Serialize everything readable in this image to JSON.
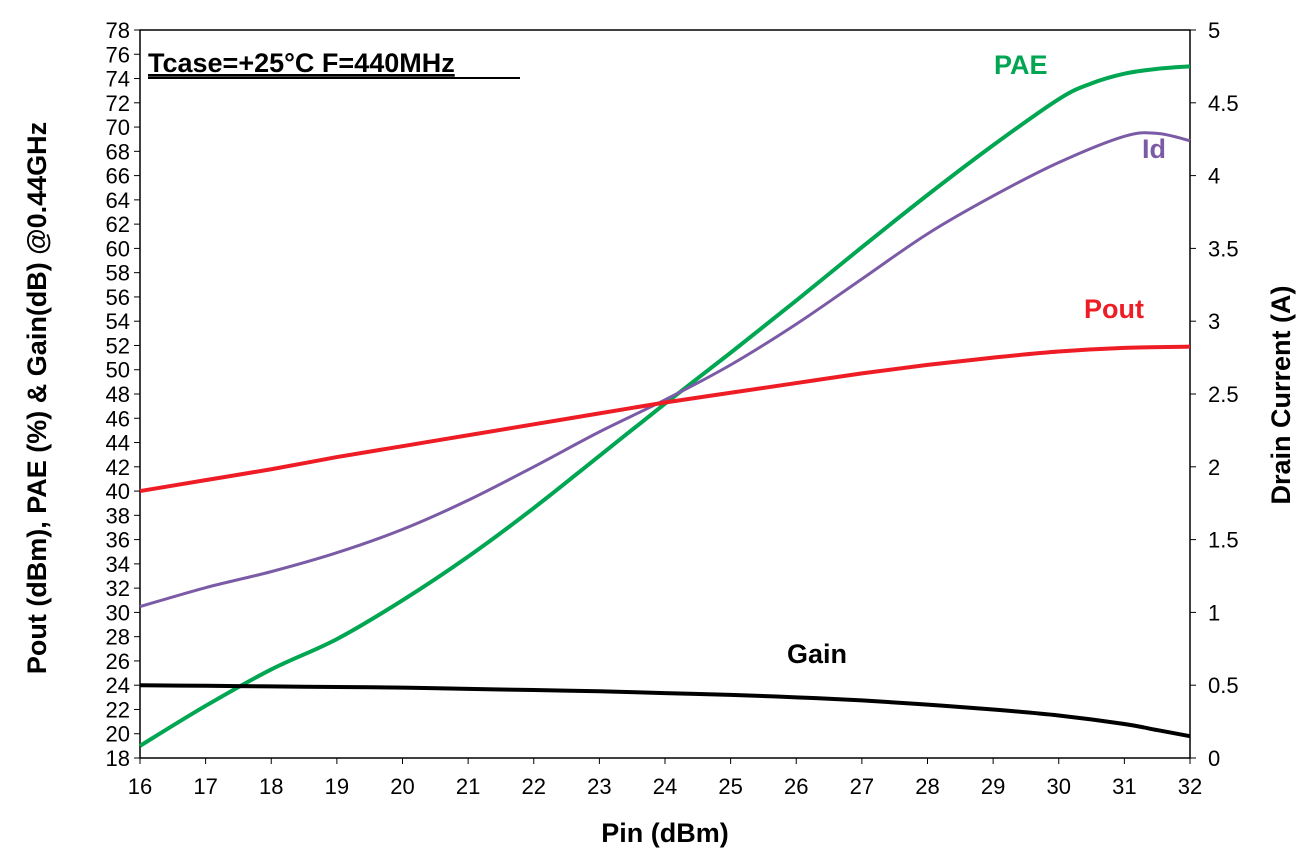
{
  "chart_data": {
    "type": "line",
    "annotation": "Tcase=+25°C  F=440MHz",
    "xlabel": "Pin (dBm)",
    "ylabel": "Pout (dBm), PAE (%) & Gain(dB) @0.44GHz",
    "y2label": "Drain Current (A)",
    "xlim": [
      16,
      32
    ],
    "ylim": [
      18,
      78
    ],
    "y2lim": [
      0,
      5
    ],
    "xticks": [
      16,
      17,
      18,
      19,
      20,
      21,
      22,
      23,
      24,
      25,
      26,
      27,
      28,
      29,
      30,
      31,
      32
    ],
    "yticks": [
      18,
      20,
      22,
      24,
      26,
      28,
      30,
      32,
      34,
      36,
      38,
      40,
      42,
      44,
      46,
      48,
      50,
      52,
      54,
      56,
      58,
      60,
      62,
      64,
      66,
      68,
      70,
      72,
      74,
      76,
      78
    ],
    "y2ticks": [
      "0",
      "0.5",
      "1",
      "1.5",
      "2",
      "2.5",
      "3",
      "3.5",
      "4",
      "4.5",
      "5"
    ],
    "series": [
      {
        "name": "PAE",
        "axis": "left",
        "color": "#00A651",
        "x": [
          16,
          17,
          18,
          19,
          20,
          21,
          22,
          23,
          24,
          25,
          26,
          27,
          28,
          29,
          30,
          30.5,
          31,
          31.5,
          32
        ],
        "values": [
          19,
          22.3,
          25.3,
          27.8,
          31.0,
          34.6,
          38.6,
          42.9,
          47.2,
          51.4,
          55.7,
          60.1,
          64.4,
          68.5,
          72.3,
          73.6,
          74.4,
          74.8,
          75.0
        ]
      },
      {
        "name": "Id",
        "axis": "right",
        "color": "#7B5BA6",
        "x": [
          16,
          17,
          18,
          19,
          20,
          21,
          22,
          23,
          24,
          25,
          26,
          27,
          28,
          29,
          30,
          31,
          31.5,
          32
        ],
        "values": [
          1.04,
          1.17,
          1.28,
          1.41,
          1.57,
          1.77,
          2.0,
          2.24,
          2.46,
          2.7,
          2.98,
          3.29,
          3.6,
          3.86,
          4.09,
          4.27,
          4.29,
          4.24
        ]
      },
      {
        "name": "Pout",
        "axis": "left",
        "color": "#EE1C25",
        "x": [
          16,
          17,
          18,
          19,
          20,
          21,
          22,
          23,
          24,
          25,
          26,
          27,
          28,
          29,
          30,
          31,
          32
        ],
        "values": [
          40.0,
          40.9,
          41.8,
          42.8,
          43.7,
          44.6,
          45.5,
          46.4,
          47.3,
          48.1,
          48.9,
          49.7,
          50.4,
          51.0,
          51.5,
          51.8,
          51.9
        ]
      },
      {
        "name": "Gain",
        "axis": "left",
        "color": "#000000",
        "x": [
          16,
          17,
          18,
          19,
          20,
          21,
          22,
          23,
          24,
          25,
          26,
          27,
          28,
          29,
          30,
          31,
          31.5,
          32
        ],
        "values": [
          24.0,
          23.95,
          23.9,
          23.85,
          23.8,
          23.7,
          23.6,
          23.5,
          23.35,
          23.2,
          23.0,
          22.75,
          22.4,
          22.0,
          21.5,
          20.8,
          20.3,
          19.8
        ]
      }
    ],
    "series_labels": [
      "PAE",
      "Id",
      "Pout",
      "Gain"
    ]
  }
}
